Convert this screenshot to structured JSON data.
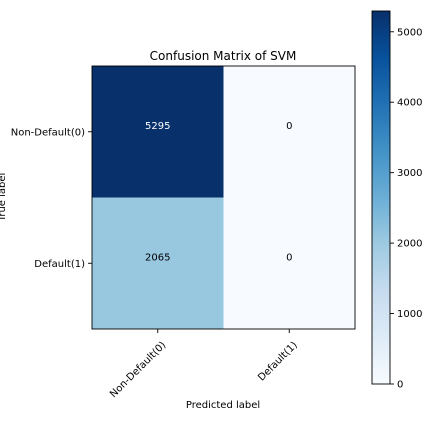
{
  "chart_data": {
    "type": "heatmap",
    "title": "Confusion Matrix of SVM",
    "xlabel": "Predicted label",
    "ylabel": "True label",
    "x_categories": [
      "Non-Default(0)",
      "Default(1)"
    ],
    "y_categories": [
      "Non-Default(0)",
      "Default(1)"
    ],
    "matrix": [
      [
        5295,
        0
      ],
      [
        2065,
        0
      ]
    ],
    "colormap": "Blues",
    "color_range": [
      0,
      5295
    ],
    "colorbar_ticks": [
      0,
      1000,
      2000,
      3000,
      4000,
      5000
    ],
    "grid": false
  }
}
